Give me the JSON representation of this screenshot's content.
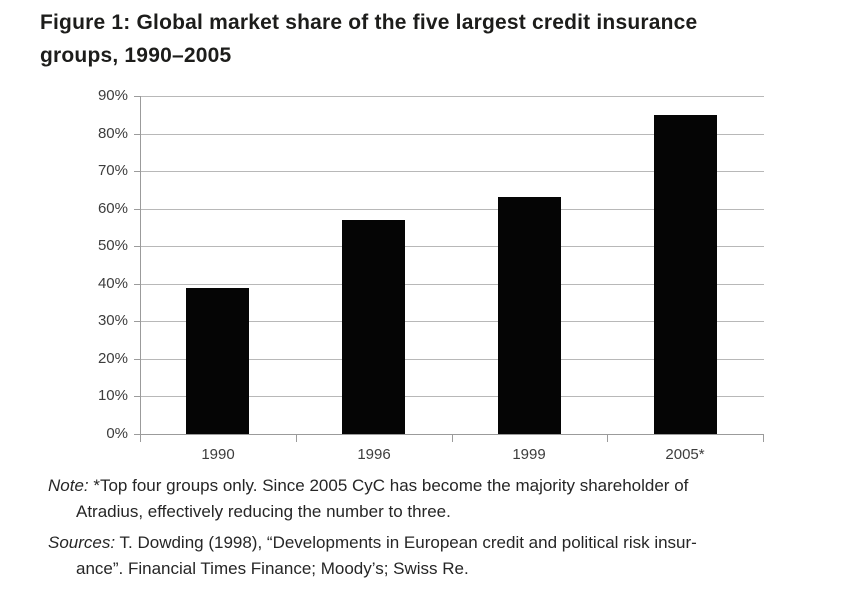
{
  "header": {
    "title_line1": "Figure 1: Global market share of the five largest credit insurance",
    "title_line2": "groups, 1990–2005"
  },
  "chart_data": {
    "type": "bar",
    "title": "Figure 1: Global market share of the five largest credit insurance groups, 1990–2005",
    "categories": [
      "1990",
      "1996",
      "1999",
      "2005*"
    ],
    "values": [
      39,
      57,
      63,
      85
    ],
    "unit": "%",
    "xlabel": "",
    "ylabel": "",
    "ylim": [
      0,
      90
    ],
    "ytick_step": 10,
    "ytick_labels": [
      "0%",
      "10%",
      "20%",
      "30%",
      "40%",
      "50%",
      "60%",
      "70%",
      "80%",
      "90%"
    ],
    "grid": true,
    "legend": false,
    "bar_color": "#050505",
    "gridline_color": "#b8b8b8",
    "axis_color": "#9b9b9b",
    "tick_label_color": "#3d3d3d"
  },
  "note": {
    "prefix": "Note:",
    "line1_rest": " *Top four groups only. Since 2005 CyC has become the majority shareholder of",
    "line2": "Atradius, effectively reducing the number to three."
  },
  "sources": {
    "prefix": "Sources:",
    "line1_rest": " T. Dowding (1998), “Developments in European credit and political risk insur-",
    "line2": "ance”. Financial Times Finance; Moody’s; Swiss Re."
  }
}
